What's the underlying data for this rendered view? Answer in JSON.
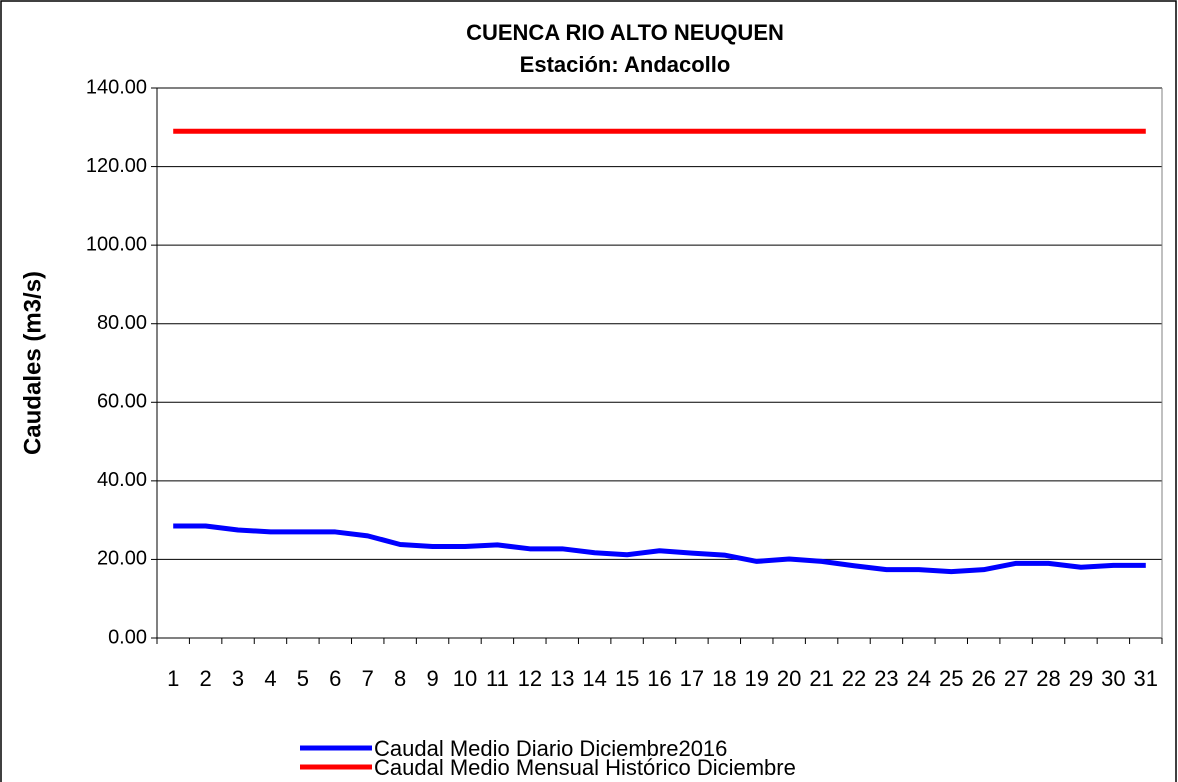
{
  "chart_data": {
    "type": "line",
    "title": "CUENCA RIO ALTO NEUQUEN",
    "subtitle": "Estación: Andacollo",
    "y_label": "Caudales (m3/s)",
    "categories": [
      "1",
      "2",
      "3",
      "4",
      "5",
      "6",
      "7",
      "8",
      "9",
      "10",
      "11",
      "12",
      "13",
      "14",
      "15",
      "16",
      "17",
      "18",
      "19",
      "20",
      "21",
      "22",
      "23",
      "24",
      "25",
      "26",
      "27",
      "28",
      "29",
      "30",
      "31"
    ],
    "series": [
      {
        "name": "Caudal Medio Diario Diciembre2016",
        "color": "#0000ff",
        "values": [
          28.5,
          28.5,
          27.5,
          27,
          27,
          27,
          26,
          23.8,
          23.3,
          23.3,
          23.7,
          22.7,
          22.7,
          21.7,
          21.2,
          22.2,
          21.6,
          21.1,
          19.5,
          20.1,
          19.5,
          18.4,
          17.4,
          17.4,
          16.9,
          17.4,
          19,
          19,
          18,
          18.5,
          18.5
        ]
      },
      {
        "name": "Caudal Medio Mensual Histórico Diciembre",
        "color": "#ff0000",
        "values": [
          129,
          129,
          129,
          129,
          129,
          129,
          129,
          129,
          129,
          129,
          129,
          129,
          129,
          129,
          129,
          129,
          129,
          129,
          129,
          129,
          129,
          129,
          129,
          129,
          129,
          129,
          129,
          129,
          129,
          129,
          129
        ]
      }
    ],
    "ylim": [
      0,
      140
    ],
    "yticks": [
      {
        "value": 0,
        "label": "0.00"
      },
      {
        "value": 20,
        "label": "20.00"
      },
      {
        "value": 40,
        "label": "40.00"
      },
      {
        "value": 60,
        "label": "60.00"
      },
      {
        "value": 80,
        "label": "80.00"
      },
      {
        "value": 100,
        "label": "100.00"
      },
      {
        "value": 120,
        "label": "120.00"
      },
      {
        "value": 140,
        "label": "140.00"
      }
    ],
    "grid": true
  }
}
